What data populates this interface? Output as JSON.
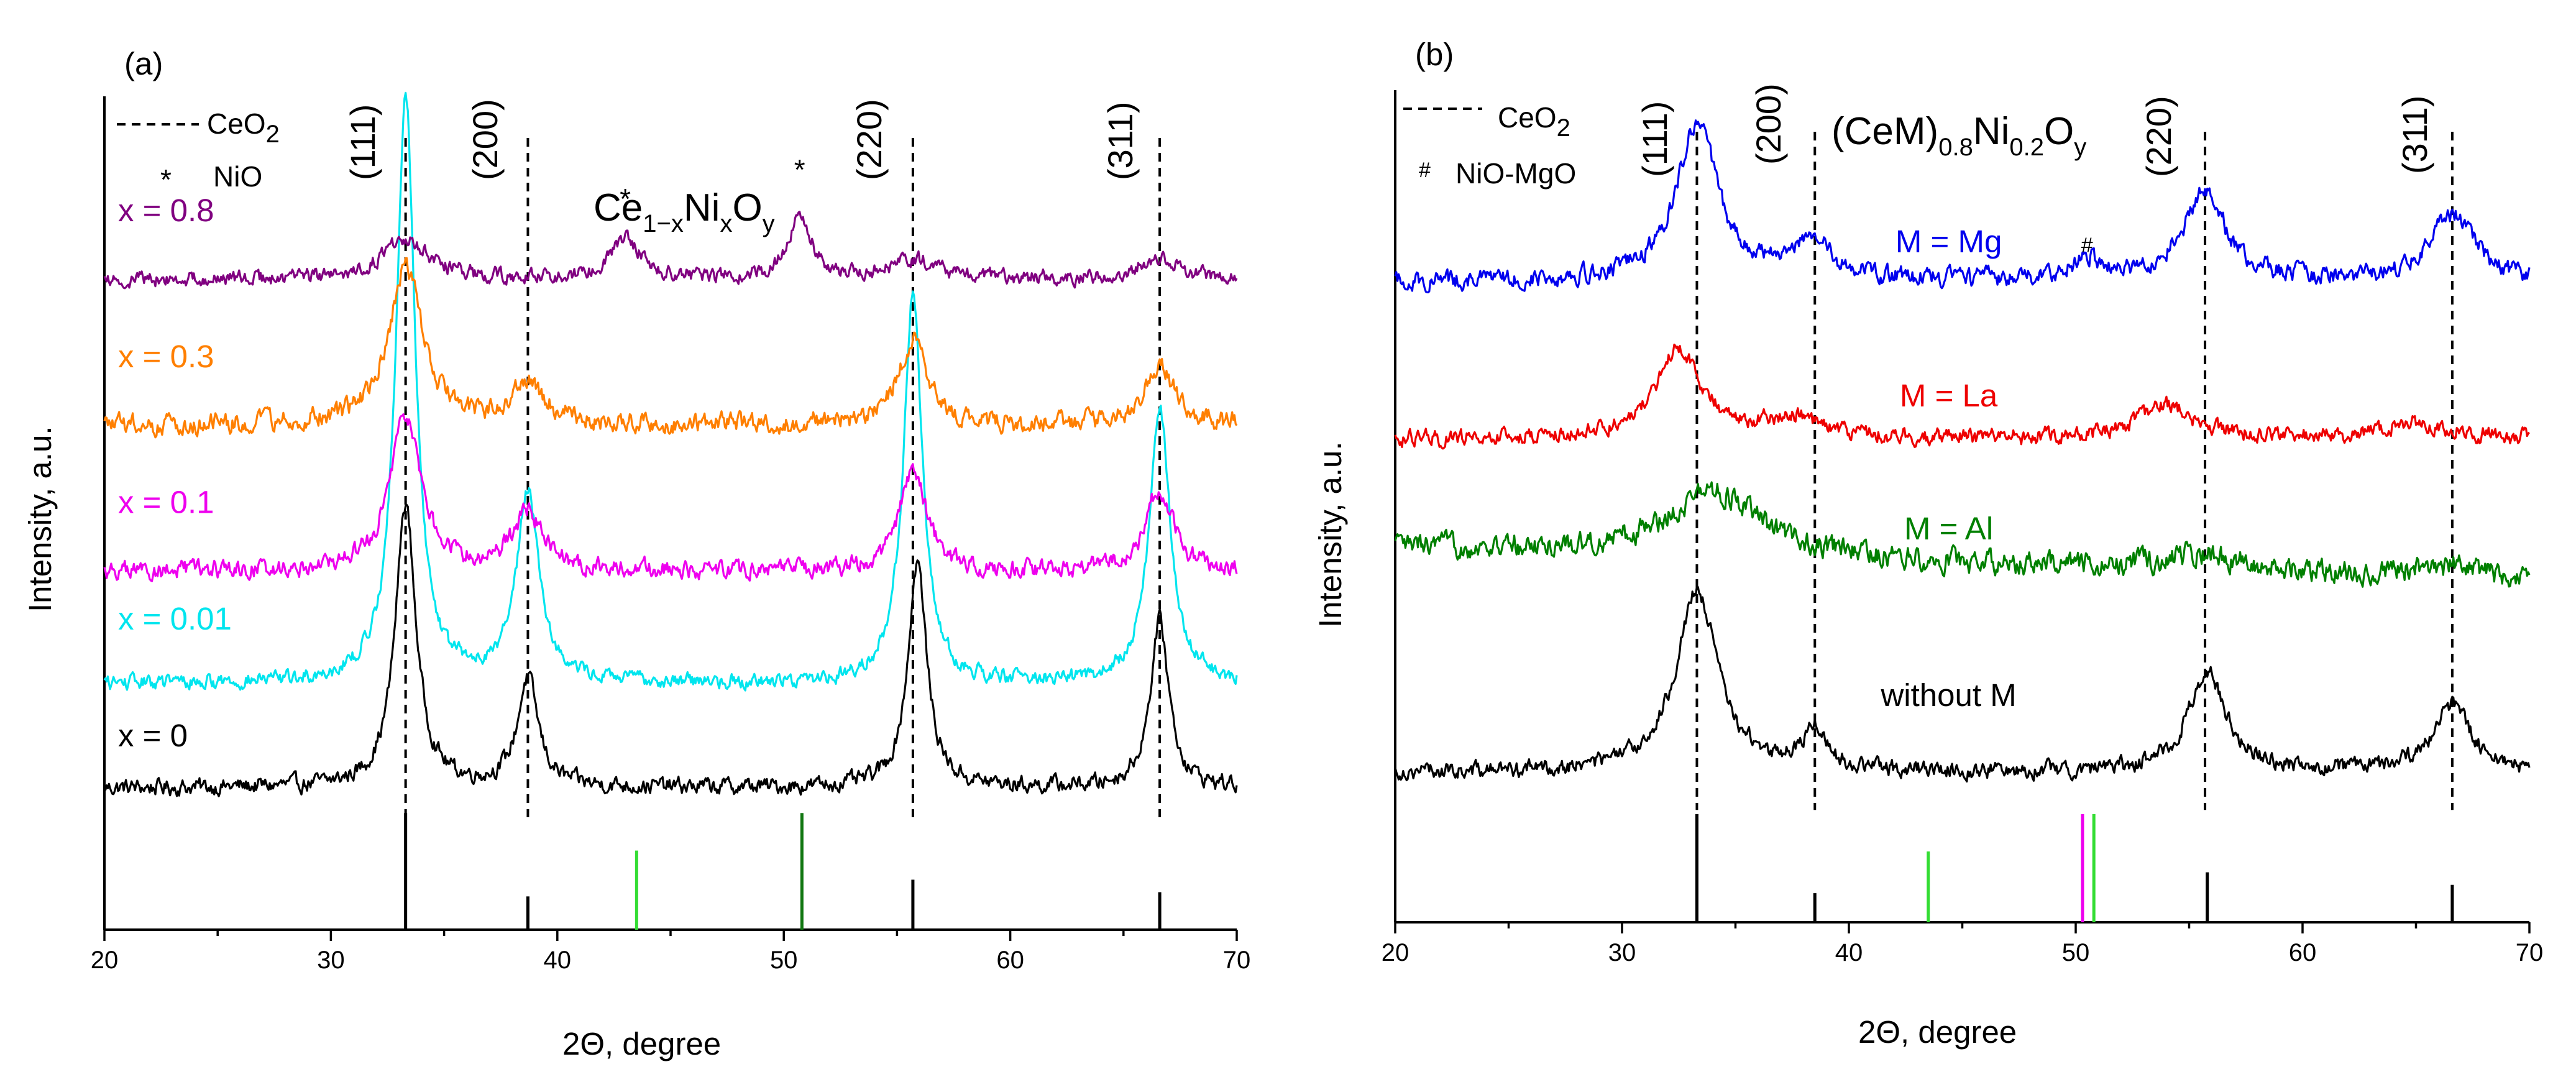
{
  "figure": {
    "panels": [
      {
        "panel_label": "(a)",
        "title": {
          "base": "Ce",
          "sub1": "1−x",
          "mid": "Ni",
          "sub2": "x",
          "mid2": "O",
          "sub3": "y"
        },
        "legend": {
          "ceo2": "CeO",
          "ceo2_sub": "2",
          "nio": "NiO",
          "nio_marker": "*"
        },
        "hkl": [
          "(111)",
          "(200)",
          "(220)",
          "(311)"
        ],
        "annotation_marker": "*"
      },
      {
        "panel_label": "(b)",
        "title": {
          "base": "(CeM)",
          "sub1": "0.8",
          "mid": "Ni",
          "sub2": "0.2",
          "mid2": "O",
          "sub3": "y"
        },
        "legend": {
          "ceo2": "CeO",
          "ceo2_sub": "2",
          "nio": "NiO-MgO",
          "nio_marker": "#"
        },
        "hkl": [
          "(111)",
          "(200)",
          "(220)",
          "(311)"
        ],
        "annotation_marker": "#"
      }
    ]
  },
  "chart_data": [
    {
      "type": "line",
      "panel": "(a)",
      "xlabel": "2Θ, degree",
      "ylabel": "Intensity, a.u.",
      "xlim": [
        20,
        70
      ],
      "xticks": [
        20,
        30,
        40,
        50,
        60,
        70
      ],
      "ylim": [
        0,
        100
      ],
      "reference_lines_deg": [
        33.3,
        38.7,
        55.7,
        66.6
      ],
      "reference_bars": [
        {
          "x": 33.3,
          "h": 14,
          "color": "#000000"
        },
        {
          "x": 38.7,
          "h": 4,
          "color": "#000000"
        },
        {
          "x": 43.5,
          "h": 9.5,
          "color": "#33dd33"
        },
        {
          "x": 50.8,
          "h": 14,
          "color": "#117711"
        },
        {
          "x": 55.7,
          "h": 6,
          "color": "#000000"
        },
        {
          "x": 66.6,
          "h": 4.5,
          "color": "#000000"
        }
      ],
      "annotations": [
        {
          "x": 43.0,
          "y": 86.5
        },
        {
          "x": 50.7,
          "y": 90.0
        }
      ],
      "series": [
        {
          "name": "x = 0",
          "color": "#000000",
          "baseline": 17,
          "label_y": 22,
          "peaks": [
            [
              33.3,
              34,
              0.55
            ],
            [
              38.7,
              13,
              0.55
            ],
            [
              55.9,
              27,
              0.5
            ],
            [
              66.6,
              20,
              0.5
            ]
          ],
          "noise": 1.0
        },
        {
          "name": "x = 0.01",
          "color": "#00e5ee",
          "baseline": 29.5,
          "label_y": 36,
          "peaks": [
            [
              33.3,
              71,
              0.5
            ],
            [
              38.7,
              23,
              0.6
            ],
            [
              55.7,
              47,
              0.5
            ],
            [
              66.6,
              33,
              0.55
            ]
          ],
          "noise": 0.9
        },
        {
          "name": "x = 0.1",
          "color": "#ee00ee",
          "baseline": 43,
          "label_y": 50,
          "peaks": [
            [
              33.3,
              19,
              0.8
            ],
            [
              38.7,
              7,
              0.8
            ],
            [
              55.7,
              12,
              0.7
            ],
            [
              66.6,
              10,
              0.7
            ]
          ],
          "noise": 1.1
        },
        {
          "name": "x = 0.3",
          "color": "#ff7f00",
          "baseline": 60.5,
          "label_y": 67.5,
          "peaks": [
            [
              33.3,
              19,
              0.9
            ],
            [
              38.7,
              5,
              0.9
            ],
            [
              55.7,
              10,
              0.8
            ],
            [
              66.6,
              7,
              0.8
            ]
          ],
          "noise": 1.2
        },
        {
          "name": "x = 0.8",
          "color": "#800080",
          "baseline": 78,
          "label_y": 85,
          "peaks": [
            [
              33.3,
              5,
              1.2
            ],
            [
              43.0,
              5,
              0.8
            ],
            [
              50.7,
              8,
              0.6
            ],
            [
              55.7,
              2.5,
              1.2
            ],
            [
              66.6,
              2.5,
              1.2
            ]
          ],
          "noise": 0.9
        }
      ]
    },
    {
      "type": "line",
      "panel": "(b)",
      "xlabel": "2Θ, degree",
      "ylabel": "Intensity, a.u.",
      "xlim": [
        20,
        70
      ],
      "xticks": [
        20,
        30,
        40,
        50,
        60,
        70
      ],
      "ylim": [
        0,
        100
      ],
      "reference_lines_deg": [
        33.3,
        38.5,
        55.7,
        66.6
      ],
      "reference_bars": [
        {
          "x": 33.3,
          "h": 13,
          "color": "#000000"
        },
        {
          "x": 38.5,
          "h": 3.5,
          "color": "#000000"
        },
        {
          "x": 43.5,
          "h": 8.5,
          "color": "#33dd33"
        },
        {
          "x": 50.3,
          "h": 13,
          "color": "#ee00ee"
        },
        {
          "x": 50.8,
          "h": 13,
          "color": "#33dd33"
        },
        {
          "x": 55.8,
          "h": 6,
          "color": "#000000"
        },
        {
          "x": 66.6,
          "h": 4.5,
          "color": "#000000"
        }
      ],
      "annotations": [
        {
          "x": 50.5,
          "y": 80.5
        }
      ],
      "series": [
        {
          "name": "without M",
          "color": "#000000",
          "label_x": 44.4,
          "label_y": 26,
          "baseline": 18,
          "peaks": [
            [
              33.3,
              22,
              1.1
            ],
            [
              38.5,
              5,
              0.6
            ],
            [
              55.8,
              12,
              1.0
            ],
            [
              66.6,
              8,
              1.0
            ]
          ],
          "noise": 1.0
        },
        {
          "name": "M = Al",
          "color": "#008000",
          "label_x": 44.4,
          "label_y": 46,
          "baseline": 41,
          "peaks": [
            [
              34.0,
              8,
              2.5
            ],
            [
              55.7,
              2,
              2.0
            ],
            [
              66.6,
              1.5,
              2.0
            ]
          ],
          "noise": 1.4,
          "tilt": 4
        },
        {
          "name": "M = La",
          "color": "#ee0000",
          "label_x": 44.4,
          "label_y": 62,
          "baseline": 58,
          "peaks": [
            [
              32.5,
              11,
              1.2
            ],
            [
              37.5,
              2.5,
              1.5
            ],
            [
              54.0,
              4,
              1.5
            ],
            [
              65.0,
              2,
              2.0
            ]
          ],
          "noise": 1.0
        },
        {
          "name": "M = Mg",
          "color": "#0000ee",
          "label_x": 44.4,
          "label_y": 80.5,
          "baseline": 77,
          "peaks": [
            [
              33.3,
              19,
              1.1
            ],
            [
              38.3,
              5,
              1.0
            ],
            [
              50.5,
              2.5,
              0.8
            ],
            [
              55.7,
              11,
              1.1
            ],
            [
              66.6,
              8,
              1.2
            ]
          ],
          "noise": 1.1
        }
      ]
    }
  ]
}
